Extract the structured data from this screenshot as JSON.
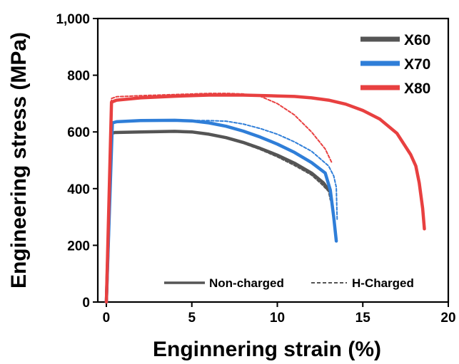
{
  "chart_data": {
    "type": "line",
    "xlabel": "Enginnering strain (%)",
    "ylabel": "Engineering stress (MPa)",
    "xlim": [
      -0.5,
      20
    ],
    "ylim": [
      0,
      1000
    ],
    "x_ticks": [
      0,
      5,
      10,
      15,
      20
    ],
    "x_tick_labels": [
      "0",
      "5",
      "10",
      "15",
      "20"
    ],
    "y_ticks": [
      0,
      200,
      400,
      600,
      800,
      1000
    ],
    "y_tick_labels": [
      "0",
      "200",
      "400",
      "600",
      "800",
      "1,000"
    ],
    "grid": false,
    "legend_position": "top-right",
    "line_style_legend": [
      {
        "label": "Non-charged",
        "dash": "solid"
      },
      {
        "label": "H-Charged",
        "dash": "dashed"
      }
    ],
    "series": [
      {
        "name": "X60",
        "color": "#555555",
        "style": "solid",
        "points": [
          [
            0,
            0
          ],
          [
            0.3,
            595
          ],
          [
            0.5,
            598
          ],
          [
            2,
            600
          ],
          [
            4,
            602
          ],
          [
            5,
            600
          ],
          [
            6,
            592
          ],
          [
            7,
            580
          ],
          [
            8,
            563
          ],
          [
            9,
            542
          ],
          [
            10,
            518
          ],
          [
            11,
            490
          ],
          [
            12,
            455
          ],
          [
            12.7,
            420
          ],
          [
            13,
            395
          ]
        ]
      },
      {
        "name": "X60",
        "color": "#555555",
        "style": "dashed",
        "points": [
          [
            0,
            0
          ],
          [
            0.3,
            595
          ],
          [
            0.5,
            597
          ],
          [
            2,
            600
          ],
          [
            4,
            600
          ],
          [
            5,
            598
          ],
          [
            6,
            590
          ],
          [
            7,
            578
          ],
          [
            8,
            560
          ],
          [
            9,
            538
          ],
          [
            10,
            512
          ],
          [
            11,
            482
          ],
          [
            12,
            448
          ],
          [
            12.6,
            415
          ],
          [
            13,
            390
          ],
          [
            13.1,
            360
          ]
        ]
      },
      {
        "name": "X70",
        "color": "#2F7ED8",
        "style": "solid",
        "points": [
          [
            0,
            0
          ],
          [
            0.35,
            632
          ],
          [
            0.6,
            636
          ],
          [
            2,
            640
          ],
          [
            4,
            641
          ],
          [
            5,
            639
          ],
          [
            6,
            632
          ],
          [
            7,
            620
          ],
          [
            8,
            603
          ],
          [
            9,
            582
          ],
          [
            10,
            557
          ],
          [
            11,
            528
          ],
          [
            12,
            492
          ],
          [
            12.8,
            455
          ],
          [
            13.1,
            395
          ],
          [
            13.3,
            300
          ],
          [
            13.45,
            215
          ]
        ]
      },
      {
        "name": "X70",
        "color": "#2F7ED8",
        "style": "dashed",
        "points": [
          [
            0,
            0
          ],
          [
            0.35,
            632
          ],
          [
            0.6,
            635
          ],
          [
            2,
            640
          ],
          [
            4,
            641
          ],
          [
            6,
            640
          ],
          [
            7,
            638
          ],
          [
            8,
            628
          ],
          [
            9,
            612
          ],
          [
            10,
            592
          ],
          [
            11,
            565
          ],
          [
            12,
            532
          ],
          [
            13,
            480
          ],
          [
            13.3,
            445
          ],
          [
            13.45,
            405
          ],
          [
            13.5,
            290
          ]
        ]
      },
      {
        "name": "X80",
        "color": "#E84040",
        "style": "solid",
        "points": [
          [
            0,
            0
          ],
          [
            0.3,
            705
          ],
          [
            0.6,
            712
          ],
          [
            2,
            720
          ],
          [
            4,
            726
          ],
          [
            6,
            730
          ],
          [
            8,
            730
          ],
          [
            10,
            727
          ],
          [
            11,
            725
          ],
          [
            12,
            720
          ],
          [
            13,
            712
          ],
          [
            14,
            698
          ],
          [
            15,
            676
          ],
          [
            16,
            645
          ],
          [
            17,
            595
          ],
          [
            17.8,
            520
          ],
          [
            18.1,
            480
          ],
          [
            18.3,
            420
          ],
          [
            18.5,
            330
          ],
          [
            18.6,
            258
          ]
        ]
      },
      {
        "name": "X80",
        "color": "#E84040",
        "style": "dashed",
        "points": [
          [
            0,
            0
          ],
          [
            0.3,
            718
          ],
          [
            0.6,
            724
          ],
          [
            2,
            728
          ],
          [
            4,
            732
          ],
          [
            6,
            736
          ],
          [
            7,
            736
          ],
          [
            8,
            734
          ],
          [
            9,
            726
          ],
          [
            10,
            700
          ],
          [
            11,
            660
          ],
          [
            12,
            600
          ],
          [
            12.8,
            540
          ],
          [
            13.2,
            490
          ]
        ]
      }
    ]
  }
}
